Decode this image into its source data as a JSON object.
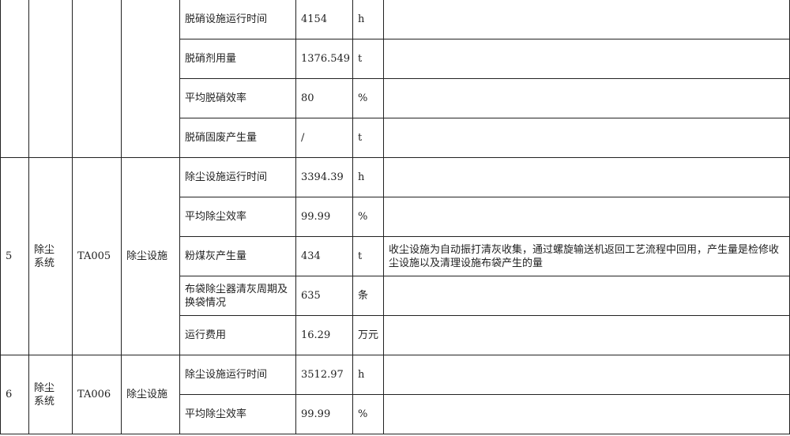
{
  "rows_top": [
    {
      "item": "脱硝设施运行时间",
      "value": "4154",
      "unit": "h",
      "note": ""
    },
    {
      "item": "脱硝剂用量",
      "value": "1376.549",
      "unit": "t",
      "note": ""
    },
    {
      "item": "平均脱硝效率",
      "value": "80",
      "unit": "%",
      "note": ""
    },
    {
      "item": "脱硝固废产生量",
      "value": "/",
      "unit": "t",
      "note": ""
    }
  ],
  "group5": {
    "no": "5",
    "system": "除尘系统",
    "code": "TA005",
    "facility": "除尘设施",
    "rows": [
      {
        "item": "除尘设施运行时间",
        "value": "3394.39",
        "unit": "h",
        "note": ""
      },
      {
        "item": "平均除尘效率",
        "value": "99.99",
        "unit": "%",
        "note": ""
      },
      {
        "item": "粉煤灰产生量",
        "value": "434",
        "unit": "t",
        "note": "收尘设施为自动振打清灰收集，通过螺旋输送机返回工艺流程中回用，产生量是检修收尘设施以及清理设施布袋产生的量"
      },
      {
        "item": "布袋除尘器清灰周期及换袋情况",
        "value": "635",
        "unit": "条",
        "note": ""
      },
      {
        "item": "运行费用",
        "value": "16.29",
        "unit": "万元",
        "note": ""
      }
    ]
  },
  "group6": {
    "no": "6",
    "system": "除尘系统",
    "code": "TA006",
    "facility": "除尘设施",
    "rows": [
      {
        "item": "除尘设施运行时间",
        "value": "3512.97",
        "unit": "h",
        "note": ""
      },
      {
        "item": "平均除尘效率",
        "value": "99.99",
        "unit": "%",
        "note": ""
      }
    ]
  }
}
